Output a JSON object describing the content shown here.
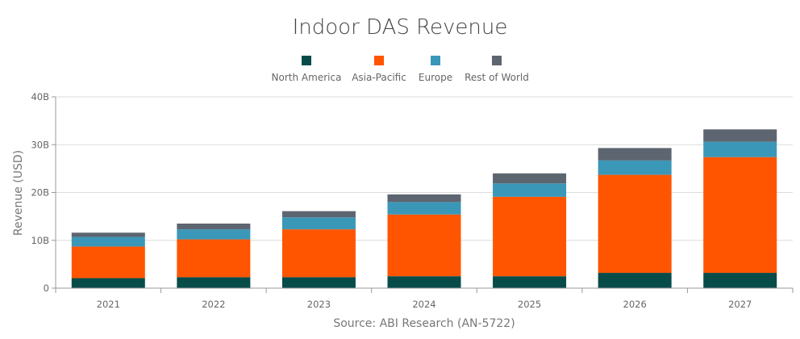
{
  "chart_data": {
    "type": "bar",
    "stacked": true,
    "title": "Indoor DAS Revenue",
    "xlabel": "",
    "ylabel": "Revenue (USD)",
    "source": "Source: ABI Research (AN-5722)",
    "categories": [
      "2021",
      "2022",
      "2023",
      "2024",
      "2025",
      "2026",
      "2027"
    ],
    "ylim": [
      0,
      40
    ],
    "yticks": [
      0,
      10,
      20,
      30,
      40
    ],
    "ytick_labels": [
      "0",
      "10B",
      "20B",
      "30B",
      "40B"
    ],
    "legend_position": "top-center",
    "grid": true,
    "series": [
      {
        "name": "North America",
        "color": "#084c4a",
        "values": [
          2.1,
          2.3,
          2.3,
          2.5,
          2.5,
          3.2,
          3.2
        ]
      },
      {
        "name": "Asia-Pacific",
        "color": "#ff5500",
        "values": [
          6.6,
          7.9,
          10.0,
          12.9,
          16.6,
          20.5,
          24.2
        ]
      },
      {
        "name": "Europe",
        "color": "#3b97b8",
        "values": [
          2.0,
          2.1,
          2.5,
          2.6,
          2.8,
          3.0,
          3.2
        ]
      },
      {
        "name": "Rest of World",
        "color": "#5d6570",
        "values": [
          0.9,
          1.2,
          1.3,
          1.6,
          2.1,
          2.6,
          2.6
        ]
      }
    ]
  }
}
